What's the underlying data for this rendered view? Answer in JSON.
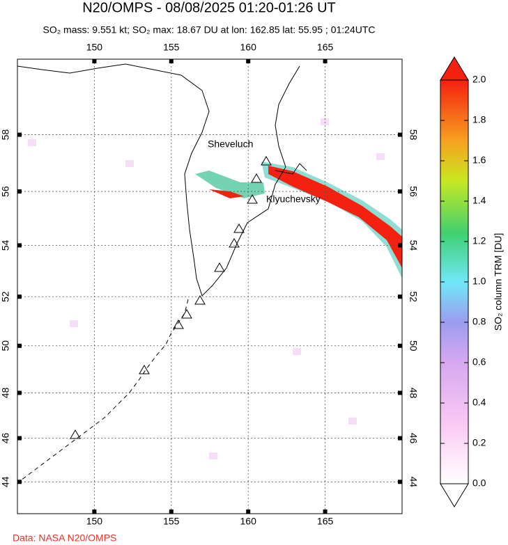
{
  "header": {
    "title": "N20/OMPS - 08/08/2025 01:20-01:26 UT",
    "subtitle": "SO₂ mass: 9.551 kt; SO₂ max: 18.67 DU at lon: 162.85 lat: 55.95 ; 01:24UTC"
  },
  "map": {
    "xlim": [
      145,
      170
    ],
    "ylim": [
      42.5,
      60.5
    ],
    "xticks": [
      150,
      155,
      160,
      165
    ],
    "yticks": [
      44,
      46,
      48,
      50,
      52,
      54,
      56,
      58
    ],
    "volcano_labels": [
      "Sheveluch",
      "Klyuchevsky"
    ]
  },
  "colorbar": {
    "label": "SO₂ column TRM [DU]",
    "lim": [
      0,
      2
    ],
    "ticks": [
      {
        "value": 0,
        "label": "0.0"
      },
      {
        "value": 0.2,
        "label": "0.2"
      },
      {
        "value": 0.4,
        "label": "0.4"
      },
      {
        "value": 0.6,
        "label": "0.6"
      },
      {
        "value": 0.8,
        "label": "0.8"
      },
      {
        "value": 1,
        "label": "1.0"
      },
      {
        "value": 1.2,
        "label": "1.2"
      },
      {
        "value": 1.4,
        "label": "1.4"
      },
      {
        "value": 1.6,
        "label": "1.6"
      },
      {
        "value": 1.8,
        "label": "1.8"
      },
      {
        "value": 2,
        "label": "2.0"
      }
    ]
  },
  "footer": {
    "credit": "Data: NASA N20/OMPS"
  }
}
